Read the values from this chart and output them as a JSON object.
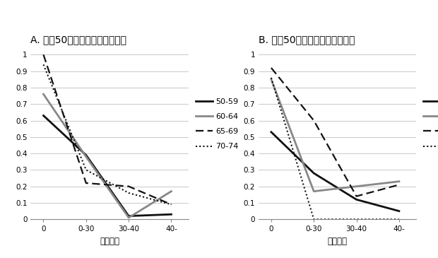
{
  "title_A": "A. 上何50パーセンタイル、男性",
  "title_B": "B. 下何50パーセンタイル、男性",
  "xlabel": "労働時間",
  "xtick_labels": [
    "0",
    "0-30",
    "30-40",
    "40-"
  ],
  "ytick_labels": [
    "0",
    "0.1",
    "0.2",
    "0.3",
    "0.4",
    "0.5",
    "0.6",
    "0.7",
    "0.8",
    "0.9",
    "1"
  ],
  "legend_labels": [
    "50-59",
    "60-64",
    "65-69",
    "70-74"
  ],
  "panel_A": {
    "series_5059": [
      0.63,
      0.39,
      0.02,
      0.03
    ],
    "series_6064": [
      0.76,
      0.38,
      0.01,
      0.17
    ],
    "series_6569": [
      1.0,
      0.22,
      0.2,
      0.09
    ],
    "series_7074": [
      0.94,
      0.3,
      0.16,
      0.09
    ]
  },
  "panel_B": {
    "series_5059": [
      0.53,
      0.28,
      0.12,
      0.05
    ],
    "series_6064": [
      0.85,
      0.17,
      0.2,
      0.23
    ],
    "series_6569": [
      0.92,
      0.6,
      0.14,
      0.21
    ],
    "series_7074": [
      0.86,
      0.0,
      0.0,
      0.0
    ]
  },
  "ylim": [
    0,
    1.05
  ],
  "background_color": "#ffffff",
  "title_fontsize": 10,
  "axis_fontsize": 8.5,
  "legend_fontsize": 8,
  "tick_fontsize": 7.5
}
